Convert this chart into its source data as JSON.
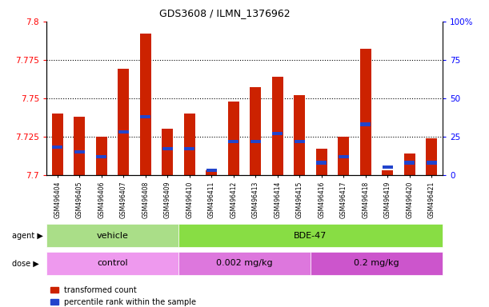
{
  "title": "GDS3608 / ILMN_1376962",
  "samples": [
    "GSM496404",
    "GSM496405",
    "GSM496406",
    "GSM496407",
    "GSM496408",
    "GSM496409",
    "GSM496410",
    "GSM496411",
    "GSM496412",
    "GSM496413",
    "GSM496414",
    "GSM496415",
    "GSM496416",
    "GSM496417",
    "GSM496418",
    "GSM496419",
    "GSM496420",
    "GSM496421"
  ],
  "red_values": [
    7.74,
    7.738,
    7.725,
    7.769,
    7.792,
    7.73,
    7.74,
    7.703,
    7.748,
    7.757,
    7.764,
    7.752,
    7.717,
    7.725,
    7.782,
    7.703,
    7.714,
    7.724
  ],
  "blue_values": [
    18,
    15,
    12,
    28,
    38,
    17,
    17,
    3,
    22,
    22,
    27,
    22,
    8,
    12,
    33,
    5,
    8,
    8
  ],
  "ymin": 7.7,
  "ymax": 7.8,
  "y2min": 0,
  "y2max": 100,
  "yticks": [
    7.7,
    7.725,
    7.75,
    7.775,
    7.8
  ],
  "y2ticks": [
    0,
    25,
    50,
    75,
    100
  ],
  "bar_color": "#cc2200",
  "blue_color": "#2244cc",
  "agent_groups": [
    {
      "label": "vehicle",
      "start": 0,
      "end": 5,
      "color": "#aade88"
    },
    {
      "label": "BDE-47",
      "start": 6,
      "end": 17,
      "color": "#88dd44"
    }
  ],
  "dose_groups": [
    {
      "label": "control",
      "start": 0,
      "end": 5,
      "color": "#ee99ee"
    },
    {
      "label": "0.002 mg/kg",
      "start": 6,
      "end": 11,
      "color": "#dd77dd"
    },
    {
      "label": "0.2 mg/kg",
      "start": 12,
      "end": 17,
      "color": "#cc55cc"
    }
  ],
  "legend_items": [
    {
      "label": "transformed count",
      "color": "#cc2200"
    },
    {
      "label": "percentile rank within the sample",
      "color": "#2244cc"
    }
  ],
  "grid_ticks": [
    7.725,
    7.75,
    7.775
  ],
  "bar_width": 0.5
}
